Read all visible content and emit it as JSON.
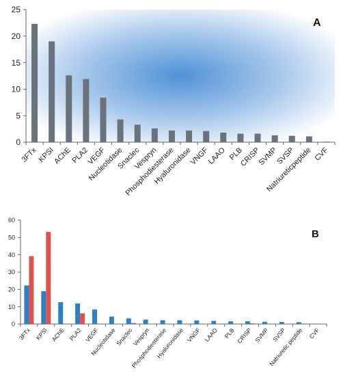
{
  "chart_data": [
    {
      "type": "bar",
      "panel_label": "A",
      "categories": [
        "3FTx",
        "KPSI",
        "AChE",
        "PLA2",
        "VEGF",
        "Nucleotidase",
        "Snaclec",
        "Vespryn",
        "Phosphodiesterase",
        "Hyaluronidase",
        "VNGF",
        "LAAO",
        "PLB",
        "CRISP",
        "SVMP",
        "SVSP",
        "Natriureticpeptide",
        "CVF"
      ],
      "series": [
        {
          "values": [
            22.3,
            19.0,
            12.6,
            11.9,
            8.4,
            4.3,
            3.3,
            2.6,
            2.2,
            2.2,
            2.1,
            1.8,
            1.6,
            1.6,
            1.3,
            1.2,
            1.1,
            0.1
          ],
          "color": "#6a737c"
        }
      ],
      "ylim": [
        0,
        25
      ],
      "yticks": [
        "0",
        "5",
        "10",
        "15",
        "20",
        "25"
      ],
      "grid": false,
      "background": "radial blue gradient"
    },
    {
      "type": "bar",
      "panel_label": "B",
      "categories": [
        "3FTx",
        "KPSI",
        "AChE",
        "PLA2",
        "VEGF",
        "Nucleotidase",
        "Snaclec",
        "Vespryn",
        "Phosphodiesterase",
        "Hyaluronidase",
        "VNGF",
        "LAAO",
        "PLB",
        "CRISP",
        "SVMP",
        "SVSP",
        "Natriuretic peptide",
        "CVF"
      ],
      "series": [
        {
          "values": [
            22.3,
            19.0,
            12.6,
            11.9,
            8.4,
            4.3,
            3.3,
            2.6,
            2.2,
            2.2,
            2.1,
            1.8,
            1.6,
            1.6,
            1.3,
            1.2,
            1.1,
            0.1
          ],
          "color": "#2f7fc1"
        },
        {
          "values": [
            39.2,
            53.2,
            0,
            6.2,
            0,
            0,
            0.6,
            0,
            0,
            0,
            0,
            0,
            0,
            0.4,
            0,
            0,
            0.3,
            0
          ],
          "color": "#d9534f"
        }
      ],
      "ylim": [
        0,
        60
      ],
      "yticks": [
        "0",
        "10",
        "20",
        "30",
        "40",
        "50",
        "60"
      ],
      "grid": false
    }
  ]
}
